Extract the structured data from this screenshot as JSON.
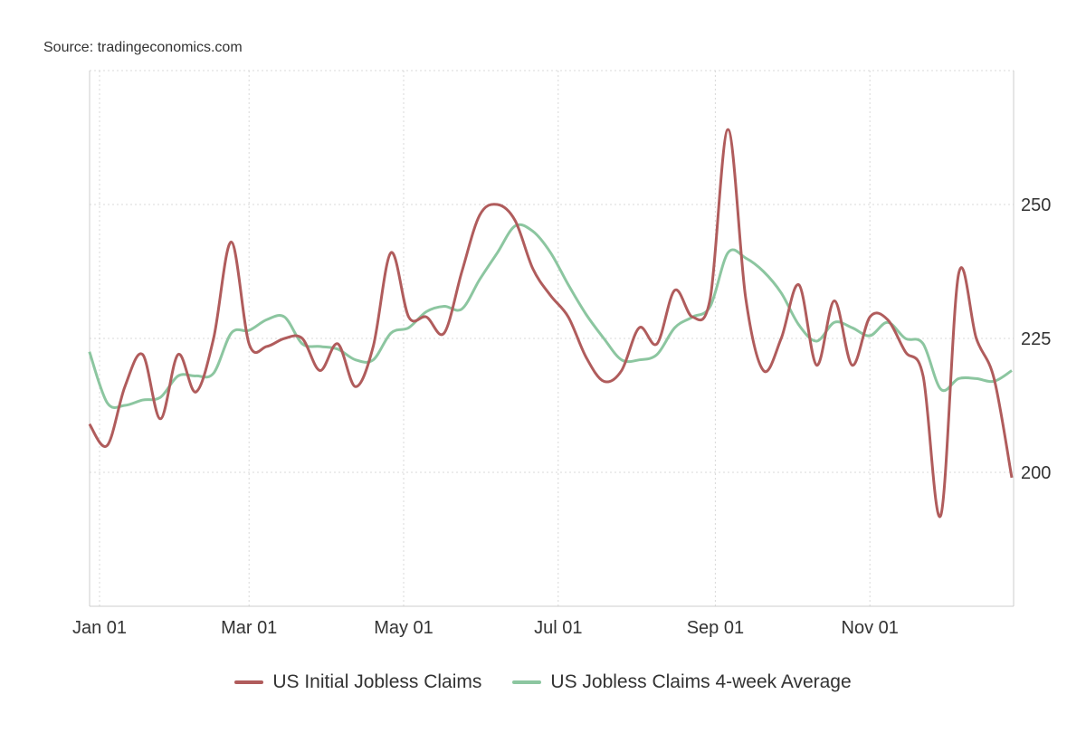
{
  "source": "Source: tradingeconomics.com",
  "colors": {
    "initial": "#b05c5c",
    "average": "#8cc6a0",
    "grid": "#d8d8d8"
  },
  "chart_data": {
    "type": "line",
    "title": "",
    "xlabel": "",
    "ylabel": "",
    "x_unit": "days since Jan 01 (weekly)",
    "x_start": -4,
    "x_step": 7,
    "xlim": [
      -4,
      360
    ],
    "ylim": [
      175,
      275
    ],
    "yticks": [
      200,
      225,
      250
    ],
    "ytick_labels": [
      "200",
      "225",
      "250"
    ],
    "xticks": [
      0,
      59,
      120,
      181,
      243,
      304
    ],
    "xtick_labels": [
      "Jan 01",
      "Mar 01",
      "May 01",
      "Jul 01",
      "Sep 01",
      "Nov 01"
    ],
    "grid": true,
    "legend_position": "bottom-center",
    "series": [
      {
        "name": "US Initial Jobless Claims",
        "color": "#b05c5c",
        "values": [
          209,
          205,
          216,
          222,
          210,
          222,
          215,
          225,
          243,
          224,
          223.5,
          225,
          225,
          219,
          224,
          216,
          223.5,
          241,
          229,
          229,
          226,
          237.5,
          248,
          250,
          247,
          238,
          233,
          229,
          221.5,
          217,
          219,
          227,
          224,
          234,
          229,
          232.5,
          264,
          232.5,
          219,
          225,
          235,
          220,
          232,
          220,
          229,
          228.5,
          222.5,
          218,
          192,
          237,
          225,
          217.5,
          199
        ]
      },
      {
        "name": "US Jobless Claims 4-week Average",
        "color": "#8cc6a0",
        "values": [
          222.5,
          213,
          212.5,
          213.5,
          214,
          218,
          218,
          218.5,
          226,
          226.5,
          228.5,
          229,
          224,
          223.5,
          223,
          221,
          221,
          226,
          227,
          230,
          231,
          230.5,
          236,
          241,
          246,
          245,
          241,
          235,
          229.5,
          225,
          221,
          221,
          222,
          227,
          229,
          231,
          241,
          240,
          237.5,
          233.5,
          227.5,
          224.5,
          228,
          227,
          225.5,
          228,
          225,
          224,
          215.5,
          217.5,
          217.5,
          217,
          219
        ]
      }
    ]
  }
}
